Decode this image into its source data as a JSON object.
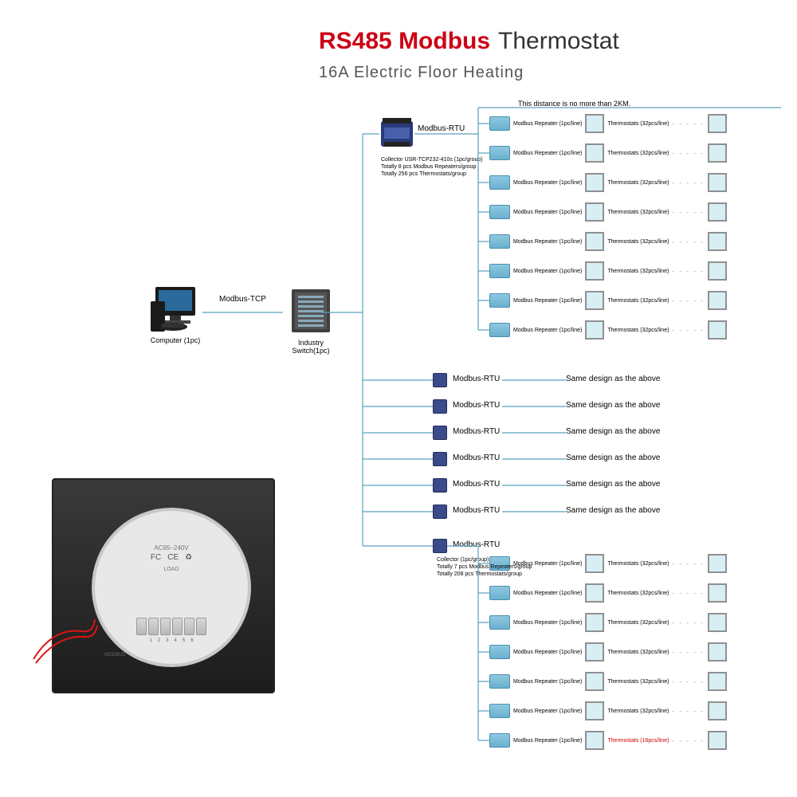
{
  "title": {
    "red": "RS485 Modbus",
    "black": "Thermostat",
    "red_color": "#cc0015",
    "black_color": "#333333"
  },
  "subtitle": {
    "text": "16A Electric Floor Heating",
    "color": "#555555"
  },
  "distance_note": "This distance is no more than 2KM.",
  "computer": {
    "label": "Computer (1pc)"
  },
  "modbus_tcp": "Modbus-TCP",
  "switch": {
    "label": "Industry Switch(1pc)"
  },
  "collector_top": {
    "label": "Modbus-RTU",
    "note1": "Collector USR-TCP232-410s (1pc/group)",
    "note2": "Totally 8 pcs Modbus Repeaters/group",
    "note3": "Totally 256 pcs Thermostats/group"
  },
  "row_labels": {
    "repeater": "Modbus Repeater (1pc/line)",
    "thermostats": "Thermostats (32pcs/line)",
    "thermostats_last": "Thermostats (16pcs/line)"
  },
  "middle_collectors": {
    "label": "Modbus-RTU",
    "same": "Same design as the above"
  },
  "collector_bot": {
    "label": "Modbus-RTU",
    "note1": "Collector (1pc/group)",
    "note2": "Totally 7 pcs Modbus Repeaters/group",
    "note3": "Totally 208 pcs Thermostats/group"
  },
  "styling": {
    "line_color": "#5aa0c0",
    "repeater_color": "#6ab0d0",
    "thermostat_bg": "#d8eef5",
    "thermostat_border": "#909090",
    "collector_blue": "#3a4a8a"
  },
  "layout": {
    "top_block_rows": 8,
    "top_block_y_start": 143,
    "top_block_y_step": 37,
    "middle_rows": 6,
    "middle_y_start": 468,
    "middle_y_step": 33,
    "bottom_block_rows": 7,
    "bottom_block_y_start": 695,
    "bottom_block_y_step": 37,
    "bottom_block_last_red": true
  },
  "product": {
    "ac_label": "AC95–240V",
    "load_label": "LOAD",
    "terminals": [
      "1",
      "2",
      "3",
      "4",
      "5",
      "6"
    ],
    "modbus_label": "MODBUS"
  }
}
